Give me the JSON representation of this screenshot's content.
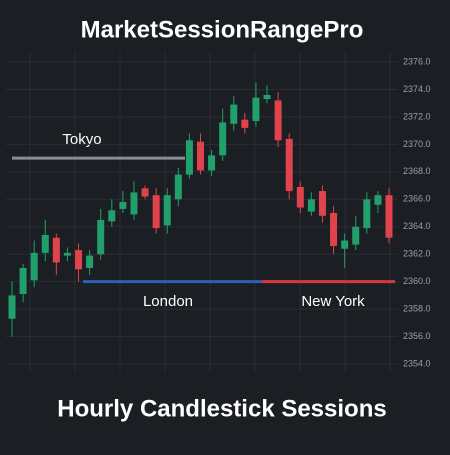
{
  "chart_data": {
    "type": "candlestick",
    "title": "MarketSessionRangePro",
    "subtitle": "Hourly Candlestick Sessions",
    "up_color": "#22a06b",
    "down_color": "#e0434b",
    "grid": true,
    "ylim": [
      2354,
      2376.6
    ],
    "yticks": [
      {
        "value": 2354,
        "label": "2354.0"
      },
      {
        "value": 2356,
        "label": "2356.0"
      },
      {
        "value": 2358,
        "label": "2358.0"
      },
      {
        "value": 2360,
        "label": "2360.0"
      },
      {
        "value": 2362,
        "label": "2362.0"
      },
      {
        "value": 2364,
        "label": "2364.0"
      },
      {
        "value": 2366,
        "label": "2366.0"
      },
      {
        "value": 2368,
        "label": "2368.0"
      },
      {
        "value": 2370,
        "label": "2370.0"
      },
      {
        "value": 2372,
        "label": "2372.0"
      },
      {
        "value": 2374,
        "label": "2374.0"
      },
      {
        "value": 2376,
        "label": "2376.0"
      }
    ],
    "open": [
      2357.3,
      2359.1,
      2360.1,
      2362.1,
      2363.2,
      2361.9,
      2362.3,
      2361.0,
      2362.0,
      2364.4,
      2365.3,
      2364.9,
      2366.8,
      2366.3,
      2364.1,
      2366.0,
      2367.8,
      2370.2,
      2368.1,
      2369.2,
      2371.5,
      2371.8,
      2371.7,
      2373.3,
      2373.2,
      2370.4,
      2366.9,
      2365.1,
      2366.6,
      2365.0,
      2362.4,
      2362.7,
      2363.9,
      2365.6,
      2366.3
    ],
    "high": [
      2360.0,
      2361.3,
      2363.0,
      2364.5,
      2363.5,
      2362.5,
      2362.8,
      2362.3,
      2365.3,
      2366.0,
      2366.6,
      2367.3,
      2367.0,
      2366.8,
      2366.8,
      2368.3,
      2370.8,
      2370.8,
      2369.6,
      2372.6,
      2373.5,
      2372.3,
      2374.5,
      2374.3,
      2373.8,
      2370.8,
      2367.3,
      2366.5,
      2367.0,
      2365.5,
      2363.5,
      2364.8,
      2366.5,
      2366.6,
      2366.8
    ],
    "low": [
      2356.0,
      2358.5,
      2359.6,
      2361.5,
      2360.5,
      2361.5,
      2360.0,
      2360.5,
      2361.6,
      2364.0,
      2365.0,
      2364.5,
      2366.0,
      2363.5,
      2363.5,
      2365.5,
      2367.5,
      2367.8,
      2367.7,
      2368.8,
      2371.0,
      2370.8,
      2371.3,
      2373.0,
      2369.8,
      2366.0,
      2365.0,
      2364.8,
      2364.3,
      2362.0,
      2361.0,
      2362.3,
      2363.5,
      2365.0,
      2362.8
    ],
    "close": [
      2359.0,
      2361.0,
      2362.1,
      2363.4,
      2361.4,
      2362.1,
      2360.9,
      2361.9,
      2364.5,
      2365.2,
      2365.8,
      2366.5,
      2366.2,
      2363.9,
      2366.3,
      2367.8,
      2370.3,
      2368.1,
      2369.2,
      2371.6,
      2372.9,
      2371.2,
      2373.4,
      2373.6,
      2370.3,
      2366.6,
      2365.4,
      2366.0,
      2364.8,
      2362.6,
      2363.0,
      2364.0,
      2366.0,
      2366.3,
      2363.2
    ],
    "sessions": [
      {
        "name": "Tokyo",
        "level": 2369.0,
        "color": "#8a8d92"
      },
      {
        "name": "London",
        "level": 2360.0,
        "color": "#2f5fb0"
      },
      {
        "name": "New York",
        "level": 2360.0,
        "color": "#d8393f"
      }
    ]
  }
}
